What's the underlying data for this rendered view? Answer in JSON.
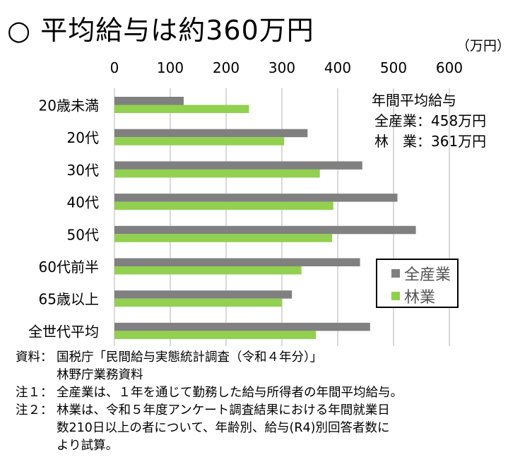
{
  "title": "○ 平均給与は約360万円",
  "chart_data": {
    "type": "bar",
    "orientation": "horizontal",
    "unit_label": "（万円）",
    "xlim": [
      0,
      600
    ],
    "ticks": [
      "0",
      "100",
      "200",
      "300",
      "400",
      "500",
      "600"
    ],
    "grid": true,
    "categories": [
      "20歳未満",
      "20代",
      "30代",
      "40代",
      "50代",
      "60代前半",
      "65歳以上",
      "全世代平均"
    ],
    "series": [
      {
        "name": "全産業",
        "color": "#808080",
        "values": [
          124,
          346,
          444,
          507,
          540,
          440,
          318,
          458
        ]
      },
      {
        "name": "林業",
        "color": "#92d050",
        "values": [
          241,
          304,
          368,
          392,
          390,
          335,
          300,
          361
        ]
      }
    ],
    "legend_placement": "right"
  },
  "summary": {
    "heading": "年間平均給与",
    "line1": "全産業：458万円",
    "line2": "林　業：361万円"
  },
  "notes": [
    {
      "label": "資料：",
      "text": "国税庁「民間給与実態統計調査（令和４年分）」"
    },
    {
      "label": "",
      "text": "林野庁業務資料"
    },
    {
      "label": "注１：",
      "text": "全産業は、１年を通じて勤務した給与所得者の年間平均給与。"
    },
    {
      "label": "注２：",
      "text": "林業は、令和５年度アンケート調査結果における年間就業日"
    },
    {
      "label": "",
      "text": "数210日以上の者について、年齢別、給与(R4)別回答者数に"
    },
    {
      "label": "",
      "text": "より試算。"
    }
  ]
}
